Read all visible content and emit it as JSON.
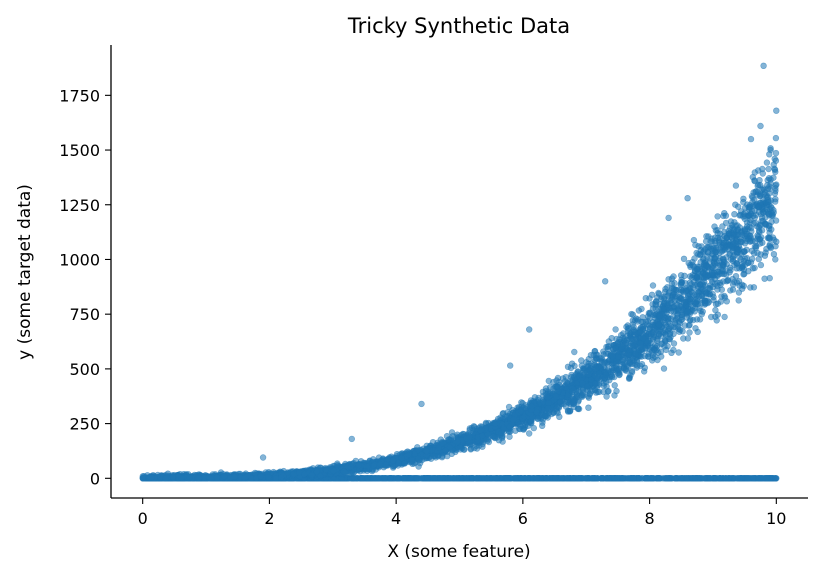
{
  "chart_data": {
    "type": "scatter",
    "title": "Tricky Synthetic Data",
    "xlabel": "X (some feature)",
    "ylabel": "y (some target data)",
    "xlim": [
      -0.5,
      10.5
    ],
    "ylim": [
      -90,
      1980
    ],
    "xticks": [
      0,
      2,
      4,
      6,
      8,
      10
    ],
    "yticks": [
      0,
      250,
      500,
      750,
      1000,
      1250,
      1500,
      1750
    ],
    "grid": false,
    "legend": "none",
    "marker_color": "#1f77b4",
    "marker_alpha": 0.55,
    "series": [
      {
        "description_of_trend": "",
        "curve": {
          "form": "y = a * x^3",
          "a": 1.3,
          "x_range": [
            0,
            10
          ],
          "relative_noise": 0.1
        },
        "outliers": [
          {
            "x": 9.8,
            "y": 1885
          },
          {
            "x": 10.0,
            "y": 1680
          },
          {
            "x": 9.75,
            "y": 1610
          },
          {
            "x": 9.6,
            "y": 1550
          },
          {
            "x": 8.3,
            "y": 1190
          },
          {
            "x": 8.6,
            "y": 1280
          },
          {
            "x": 7.3,
            "y": 900
          },
          {
            "x": 6.1,
            "y": 680
          },
          {
            "x": 5.8,
            "y": 515
          },
          {
            "x": 4.4,
            "y": 340
          },
          {
            "x": 3.3,
            "y": 180
          },
          {
            "x": 1.9,
            "y": 95
          }
        ]
      },
      {
        "curve": {
          "form": "y = 0",
          "x_range": [
            0,
            10
          ]
        }
      }
    ]
  }
}
